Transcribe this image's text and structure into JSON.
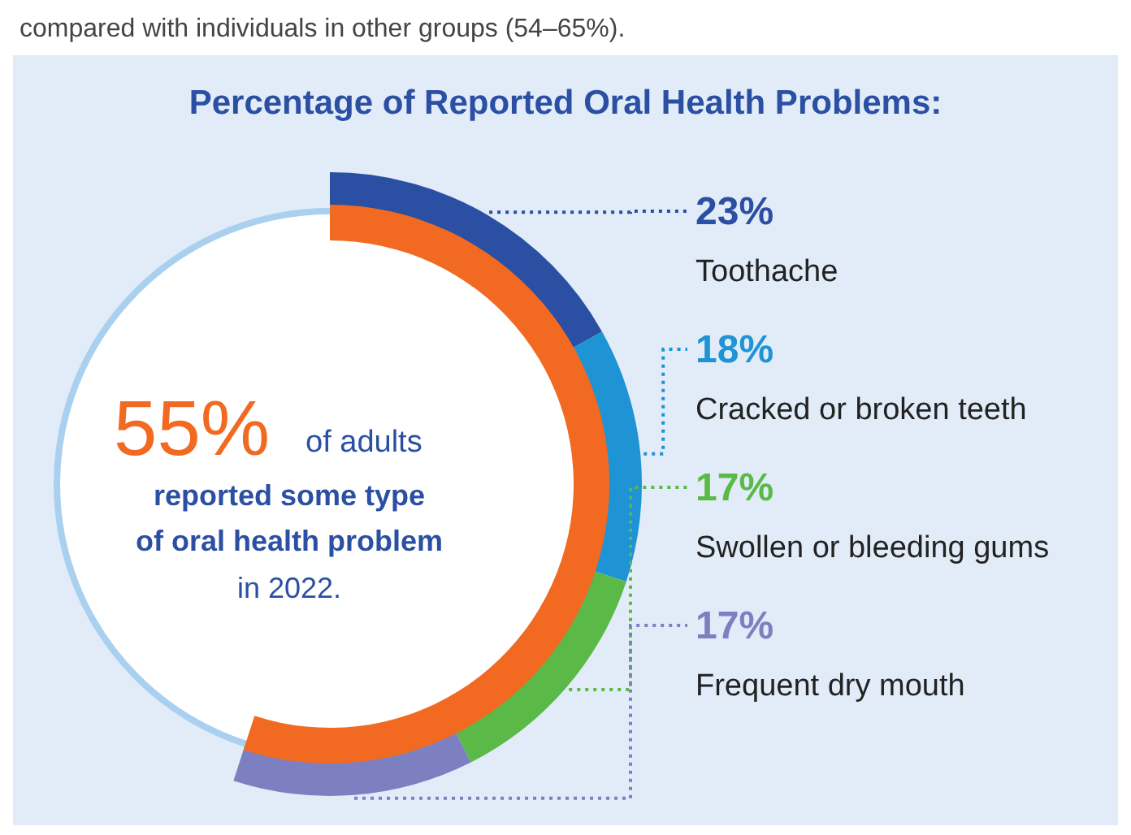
{
  "chart_data": [
    {
      "type": "other",
      "title": "Percentage of Reported Oral Health Problems:",
      "categories": [
        "Toothache",
        "Cracked or broken teeth",
        "Swollen or bleeding gums",
        "Frequent dry mouth"
      ],
      "values": [
        23,
        18,
        17,
        17
      ],
      "value_labels": [
        "23%",
        "18%",
        "17%",
        "17%"
      ],
      "colors": [
        "#2b4fa3",
        "#1e94d4",
        "#5bb947",
        "#7d80c0"
      ],
      "annotations": [
        "compared with individuals in other groups (54–65%)."
      ]
    },
    {
      "type": "other",
      "categories": [
        null
      ],
      "values": [
        55
      ],
      "value_labels": [
        "55%"
      ],
      "colors": [
        "#f26a21"
      ],
      "annotations": [
        "of adults",
        "reported some type",
        "of oral health problem",
        "in  2022."
      ]
    }
  ]
}
